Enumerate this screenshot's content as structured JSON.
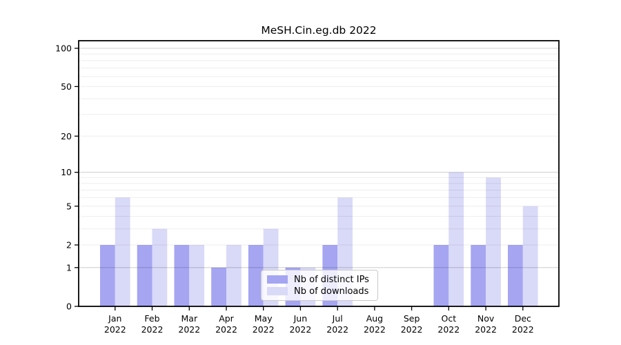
{
  "chart_data": {
    "type": "bar",
    "title": "MeSH.Cin.eg.db 2022",
    "categories": [
      "Jan",
      "Feb",
      "Mar",
      "Apr",
      "May",
      "Jun",
      "Jul",
      "Aug",
      "Sep",
      "Oct",
      "Nov",
      "Dec"
    ],
    "category_year": "2022",
    "series": [
      {
        "name": "Nb of distinct IPs",
        "color": "#a5a5f2",
        "values": [
          2,
          2,
          2,
          1,
          2,
          1,
          2,
          0,
          0,
          2,
          2,
          2
        ]
      },
      {
        "name": "Nb of downloads",
        "color": "#d9d9f8",
        "values": [
          6,
          3,
          2,
          2,
          3,
          1,
          6,
          0,
          0,
          10,
          9,
          5
        ]
      }
    ],
    "y_axis": {
      "scale": "log1p",
      "tick_values": [
        0,
        1,
        2,
        5,
        10,
        20,
        50,
        100
      ],
      "tick_labels": [
        "0",
        "1",
        "2",
        "5",
        "10",
        "20",
        "50",
        "100"
      ],
      "max_value": 113,
      "major_gridlines": [
        1,
        10,
        100
      ],
      "minor_gridlines": [
        2,
        3,
        4,
        5,
        6,
        7,
        8,
        9,
        20,
        30,
        40,
        50,
        60,
        70,
        80,
        90
      ]
    },
    "x_axis": {
      "label_line2": "2022"
    },
    "legend": {
      "position": "bottom-center"
    },
    "grid": true,
    "colors": {
      "axis": "#000000",
      "major_grid": "rgba(0,0,0,0.18)",
      "minor_grid": "rgba(0,0,0,0.07)"
    }
  }
}
